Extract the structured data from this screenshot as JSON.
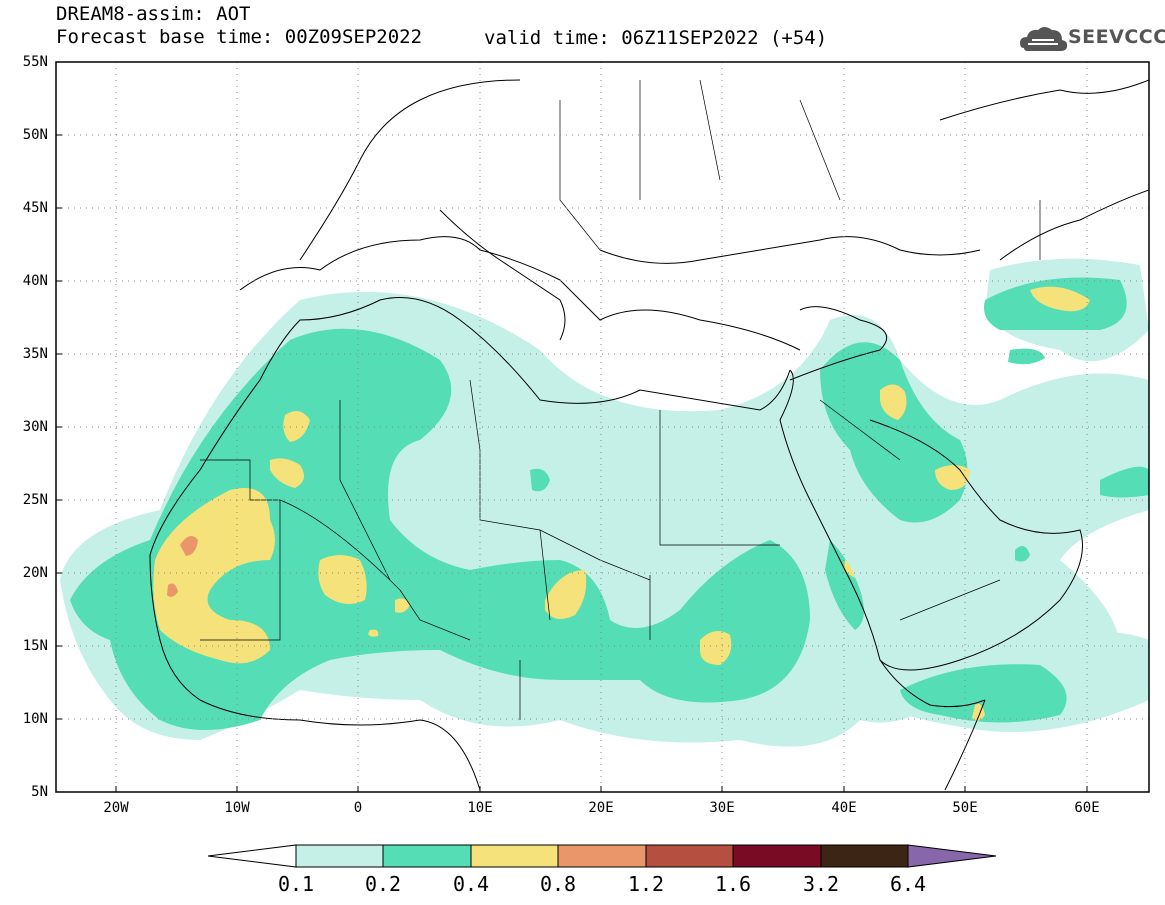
{
  "header": {
    "title": "DREAM8-assim: AOT",
    "base_time": "Forecast base time: 00Z09SEP2022",
    "valid_time": "valid time: 06Z11SEP2022 (+54)",
    "logo_text": "SEEVCCC"
  },
  "map": {
    "lat_labels": [
      "55N",
      "50N",
      "45N",
      "40N",
      "35N",
      "30N",
      "25N",
      "20N",
      "15N",
      "10N",
      "5N"
    ],
    "lon_labels": [
      "20W",
      "10W",
      "0",
      "10E",
      "20E",
      "30E",
      "40E",
      "50E",
      "60E"
    ]
  },
  "colorbar": {
    "labels": [
      "0.1",
      "0.2",
      "0.4",
      "0.8",
      "1.2",
      "1.6",
      "3.2",
      "6.4"
    ],
    "colors": [
      "#ffffff",
      "#c4f0e8",
      "#55ddb5",
      "#f5e27a",
      "#e8966a",
      "#b55040",
      "#7a0b25",
      "#3d2515",
      "#8866aa"
    ]
  },
  "icons": {
    "logo": "cloud-logo-icon"
  }
}
